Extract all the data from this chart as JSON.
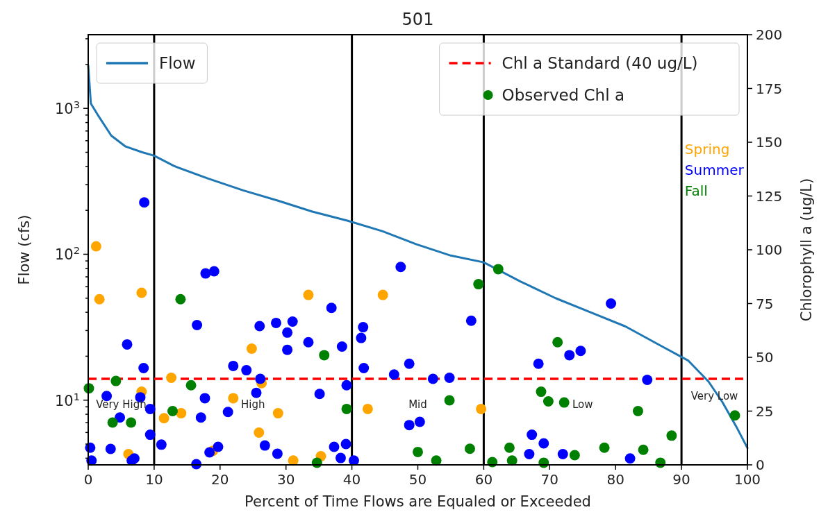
{
  "chart_data": {
    "type": "line",
    "title": "501",
    "xlabel": "Percent of Time Flows are Equaled or Exceeded",
    "ylabel": "Flow (cfs)",
    "y2label": "Chlorophyll a (ug/L)",
    "xlim": [
      0,
      100
    ],
    "xticks": [
      0,
      10,
      20,
      30,
      40,
      50,
      60,
      70,
      80,
      90,
      100
    ],
    "ylim": [
      3.6,
      3200
    ],
    "log": "y",
    "yticks": [
      {
        "value": 4,
        "label": null
      },
      {
        "value": 5,
        "label": null
      },
      {
        "value": 6,
        "label": null
      },
      {
        "value": 7,
        "label": null
      },
      {
        "value": 8,
        "label": null
      },
      {
        "value": 9,
        "label": null
      },
      {
        "value": 10,
        "label": "10$^{1}$"
      },
      {
        "value": 20,
        "label": null
      },
      {
        "value": 30,
        "label": null
      },
      {
        "value": 40,
        "label": null
      },
      {
        "value": 50,
        "label": null
      },
      {
        "value": 60,
        "label": null
      },
      {
        "value": 70,
        "label": null
      },
      {
        "value": 80,
        "label": null
      },
      {
        "value": 90,
        "label": null
      },
      {
        "value": 100,
        "label": "10$^{2}$"
      },
      {
        "value": 200,
        "label": null
      },
      {
        "value": 300,
        "label": null
      },
      {
        "value": 400,
        "label": null
      },
      {
        "value": 500,
        "label": null
      },
      {
        "value": 600,
        "label": null
      },
      {
        "value": 700,
        "label": null
      },
      {
        "value": 800,
        "label": null
      },
      {
        "value": 900,
        "label": null
      },
      {
        "value": 1000,
        "label": "10$^{3}$"
      },
      {
        "value": 2000,
        "label": null
      },
      {
        "value": 3000,
        "label": null
      }
    ],
    "y2lim": [
      0,
      200
    ],
    "y2ticks": [
      0,
      25,
      50,
      75,
      100,
      125,
      150,
      175,
      200
    ],
    "legend": "top right",
    "series": [
      {
        "name": "Flow",
        "color": "#1f77b4",
        "line_style": "solid",
        "x": [
          0,
          0.4,
          1.4,
          3.5,
          5.6,
          8.2,
          10,
          13,
          18.2,
          23.5,
          28.8,
          34,
          39.3,
          44.6,
          49.8,
          55,
          60,
          65.6,
          70.9,
          76.2,
          81.5,
          86.7,
          91,
          94.1,
          96.2,
          98.3,
          100
        ],
        "values": [
          1970,
          1080,
          910,
          650,
          550,
          500,
          474,
          403,
          330,
          274,
          233,
          196,
          170,
          144,
          117,
          98,
          88,
          65,
          50,
          40,
          32,
          23.8,
          18.7,
          13.4,
          9.7,
          6.6,
          4.7
        ]
      },
      {
        "name": "Observed Chl a",
        "type": "scatter",
        "axis": "y2",
        "marker": "circle",
        "x": [
          0.1,
          1.2,
          1.7,
          8.1,
          33.4,
          24.8,
          12.6,
          8.1,
          26.3,
          22,
          11.5,
          14.1,
          28.8,
          25.9,
          6.1,
          18.9,
          31.1,
          44.7,
          42.4,
          59.6,
          35.3,
          8.5,
          17.8,
          19.1,
          5.9,
          16.5,
          8.4,
          22,
          24,
          26.1,
          26,
          28.5,
          31,
          30.2,
          30.2,
          33.4,
          2.8,
          7.9,
          9.4,
          4.8,
          17.7,
          25.5,
          17.1,
          21.2,
          9.4,
          11.1,
          0.3,
          3.4,
          0.5,
          7,
          6.6,
          26.8,
          28.7,
          16.4,
          18.4,
          19.7,
          47.4,
          36.9,
          41.7,
          41.4,
          38.5,
          41.8,
          46.4,
          48.7,
          52.3,
          54.8,
          58.1,
          35.1,
          39.2,
          48.7,
          50.3,
          37.3,
          39.1,
          38.3,
          40.3,
          79.3,
          68.3,
          73,
          74.7,
          84.8,
          67.3,
          69.1,
          66.9,
          72,
          82.2,
          14,
          4.2,
          15.6,
          12.8,
          3.7,
          6.5,
          35.8,
          39.2,
          59.2,
          62.2,
          54.8,
          50,
          52.8,
          57.9,
          63.9,
          64.3,
          61.3,
          34.7,
          71.2,
          68.7,
          69.8,
          72.2,
          83.4,
          98.1,
          88.5,
          78.3,
          84.2,
          73.8,
          69.1,
          86.8
        ],
        "values": [
          35.6,
          101.6,
          77,
          80,
          79,
          54,
          40.5,
          34,
          38,
          31,
          21.7,
          24,
          24,
          15,
          5,
          6.5,
          2,
          79,
          26,
          26,
          4,
          122,
          89,
          90,
          56,
          65,
          45,
          46,
          44,
          40,
          64.5,
          66,
          66.6,
          61.5,
          53.5,
          57,
          32,
          31.4,
          26,
          22,
          31,
          33.5,
          22,
          24.6,
          14,
          9.4,
          8,
          7.4,
          2,
          3,
          2,
          9,
          5.2,
          0.3,
          5.8,
          8.4,
          92,
          73,
          64,
          59,
          55,
          45,
          42,
          47,
          40,
          40.5,
          67,
          33,
          37,
          18.5,
          20,
          8.4,
          9.7,
          3.2,
          2,
          75,
          47,
          51,
          53,
          39.5,
          14,
          10,
          5,
          5,
          3,
          77,
          39,
          37,
          25,
          19.7,
          19.7,
          51,
          26,
          84,
          91,
          30,
          6,
          2,
          7.5,
          8,
          2,
          1.3,
          1,
          57,
          34,
          29.5,
          29,
          25,
          23,
          13.6,
          8,
          7,
          4.5,
          1,
          1
        ],
        "colors": [
          "#008000",
          "#ffa500",
          "#ffa500",
          "#ffa500",
          "#ffa500",
          "#ffa500",
          "#ffa500",
          "#ffa500",
          "#ffa500",
          "#ffa500",
          "#ffa500",
          "#ffa500",
          "#ffa500",
          "#ffa500",
          "#ffa500",
          "#ffa500",
          "#ffa500",
          "#ffa500",
          "#ffa500",
          "#ffa500",
          "#ffa500",
          "#0000ff",
          "#0000ff",
          "#0000ff",
          "#0000ff",
          "#0000ff",
          "#0000ff",
          "#0000ff",
          "#0000ff",
          "#0000ff",
          "#0000ff",
          "#0000ff",
          "#0000ff",
          "#0000ff",
          "#0000ff",
          "#0000ff",
          "#0000ff",
          "#0000ff",
          "#0000ff",
          "#0000ff",
          "#0000ff",
          "#0000ff",
          "#0000ff",
          "#0000ff",
          "#0000ff",
          "#0000ff",
          "#0000ff",
          "#0000ff",
          "#0000ff",
          "#0000ff",
          "#0000ff",
          "#0000ff",
          "#0000ff",
          "#0000ff",
          "#0000ff",
          "#0000ff",
          "#0000ff",
          "#0000ff",
          "#0000ff",
          "#0000ff",
          "#0000ff",
          "#0000ff",
          "#0000ff",
          "#0000ff",
          "#0000ff",
          "#0000ff",
          "#0000ff",
          "#0000ff",
          "#0000ff",
          "#0000ff",
          "#0000ff",
          "#0000ff",
          "#0000ff",
          "#0000ff",
          "#0000ff",
          "#0000ff",
          "#0000ff",
          "#0000ff",
          "#0000ff",
          "#0000ff",
          "#0000ff",
          "#0000ff",
          "#0000ff",
          "#0000ff",
          "#0000ff",
          "#008000",
          "#008000",
          "#008000",
          "#008000",
          "#008000",
          "#008000",
          "#008000",
          "#008000",
          "#008000",
          "#008000",
          "#008000",
          "#008000",
          "#008000",
          "#008000",
          "#008000",
          "#008000",
          "#008000",
          "#008000",
          "#008000",
          "#008000",
          "#008000",
          "#008000",
          "#008000",
          "#008000",
          "#008000",
          "#008000",
          "#008000",
          "#008000",
          "#008000",
          "#008000"
        ]
      }
    ],
    "ref_lines": [
      {
        "axis": "x",
        "value": 10,
        "color": "#000000"
      },
      {
        "axis": "x",
        "value": 40,
        "color": "#000000"
      },
      {
        "axis": "x",
        "value": 60,
        "color": "#000000"
      },
      {
        "axis": "x",
        "value": 90,
        "color": "#000000"
      },
      {
        "axis": "y2",
        "value": 40,
        "label": "Chl a Standard (40 ug/L)",
        "color": "#ff0000",
        "line_style": "dashed"
      }
    ],
    "annotations": [
      "Very High",
      "High",
      "Mid",
      "Low",
      "Very Low",
      "Spring",
      "Summer",
      "Fall"
    ]
  }
}
